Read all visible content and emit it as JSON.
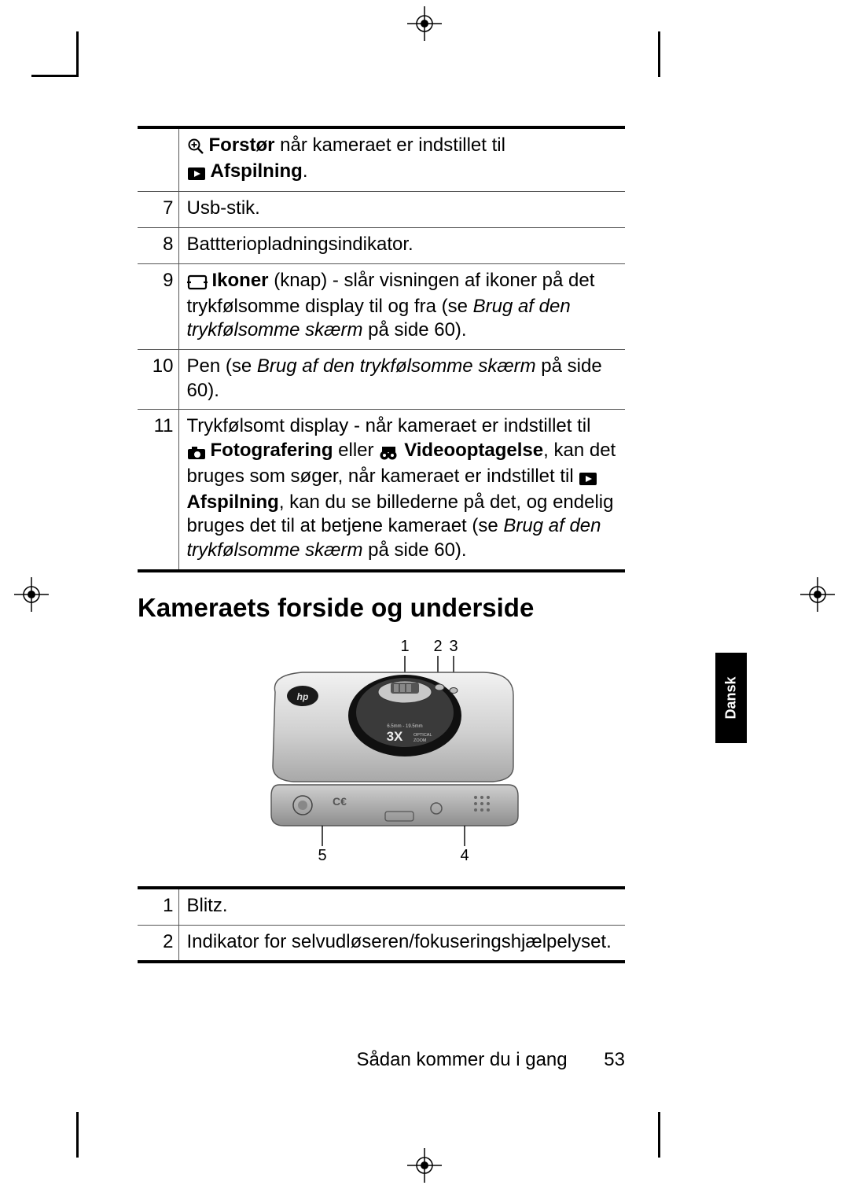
{
  "table1": {
    "rows": [
      {
        "num": "",
        "cell": {
          "parts": [
            {
              "icon": "zoom-in",
              "bold": "Forstør",
              "text": " når kameraet er indstillet til "
            },
            {
              "br": true
            },
            {
              "icon": "play-box",
              "bold": "Afspilning",
              "text": "."
            }
          ]
        }
      },
      {
        "num": "7",
        "cell": {
          "plain": "Usb-stik."
        }
      },
      {
        "num": "8",
        "cell": {
          "plain": "Battteriopladningsindikator."
        }
      },
      {
        "num": "9",
        "cell": {
          "parts": [
            {
              "icon": "display-icons",
              "bold": "Ikoner",
              "text": " (knap) - slår visningen af ikoner på det trykfølsomme display til og fra (se "
            },
            {
              "ital": "Brug af den trykfølsomme skærm"
            },
            {
              "text": " på side 60)."
            }
          ]
        }
      },
      {
        "num": "10",
        "cell": {
          "parts": [
            {
              "text": "Pen (se "
            },
            {
              "ital": "Brug af den trykfølsomme skærm"
            },
            {
              "text": " på side 60)."
            }
          ]
        }
      },
      {
        "num": "11",
        "cell": {
          "parts": [
            {
              "text": "Trykfølsomt display - når kameraet er indstillet til "
            },
            {
              "br": true
            },
            {
              "icon": "camera",
              "bold": "Fotografering",
              "text": " eller "
            },
            {
              "icon": "video",
              "bold": "Videooptagelse",
              "text": ", kan det bruges som søger, når kameraet er indstillet til "
            },
            {
              "icon": "play-box",
              "bold": "Afspilning",
              "text": ", kan du se billederne på det, og endelig bruges det til at betjene kameraet (se "
            },
            {
              "ital": "Brug af den trykfølsomme skærm"
            },
            {
              "text": " på side 60)."
            }
          ]
        }
      }
    ]
  },
  "section_heading": "Kameraets forside og underside",
  "diagram": {
    "callouts_top": [
      "1",
      "2",
      "3"
    ],
    "callouts_bottom_left": "5",
    "callouts_bottom_right": "4",
    "lens_label_top": "6.5mm - 19.5mm",
    "lens_label_main": "3X",
    "lens_label_sub1": "OPTICAL",
    "lens_label_sub2": "ZOOM"
  },
  "table2": {
    "rows": [
      {
        "num": "1",
        "cell": "Blitz."
      },
      {
        "num": "2",
        "cell": "Indikator for selvudløseren/fokuseringshjælpelyset."
      }
    ]
  },
  "lang_tab": "Dansk",
  "footer_text": "Sådan kommer du i gang",
  "page_number": "53",
  "colors": {
    "text": "#000000",
    "bg": "#ffffff",
    "camera_body_light": "#d8d8d8",
    "camera_body_dark": "#7a7a7a",
    "lens_black": "#1a1a1a"
  }
}
